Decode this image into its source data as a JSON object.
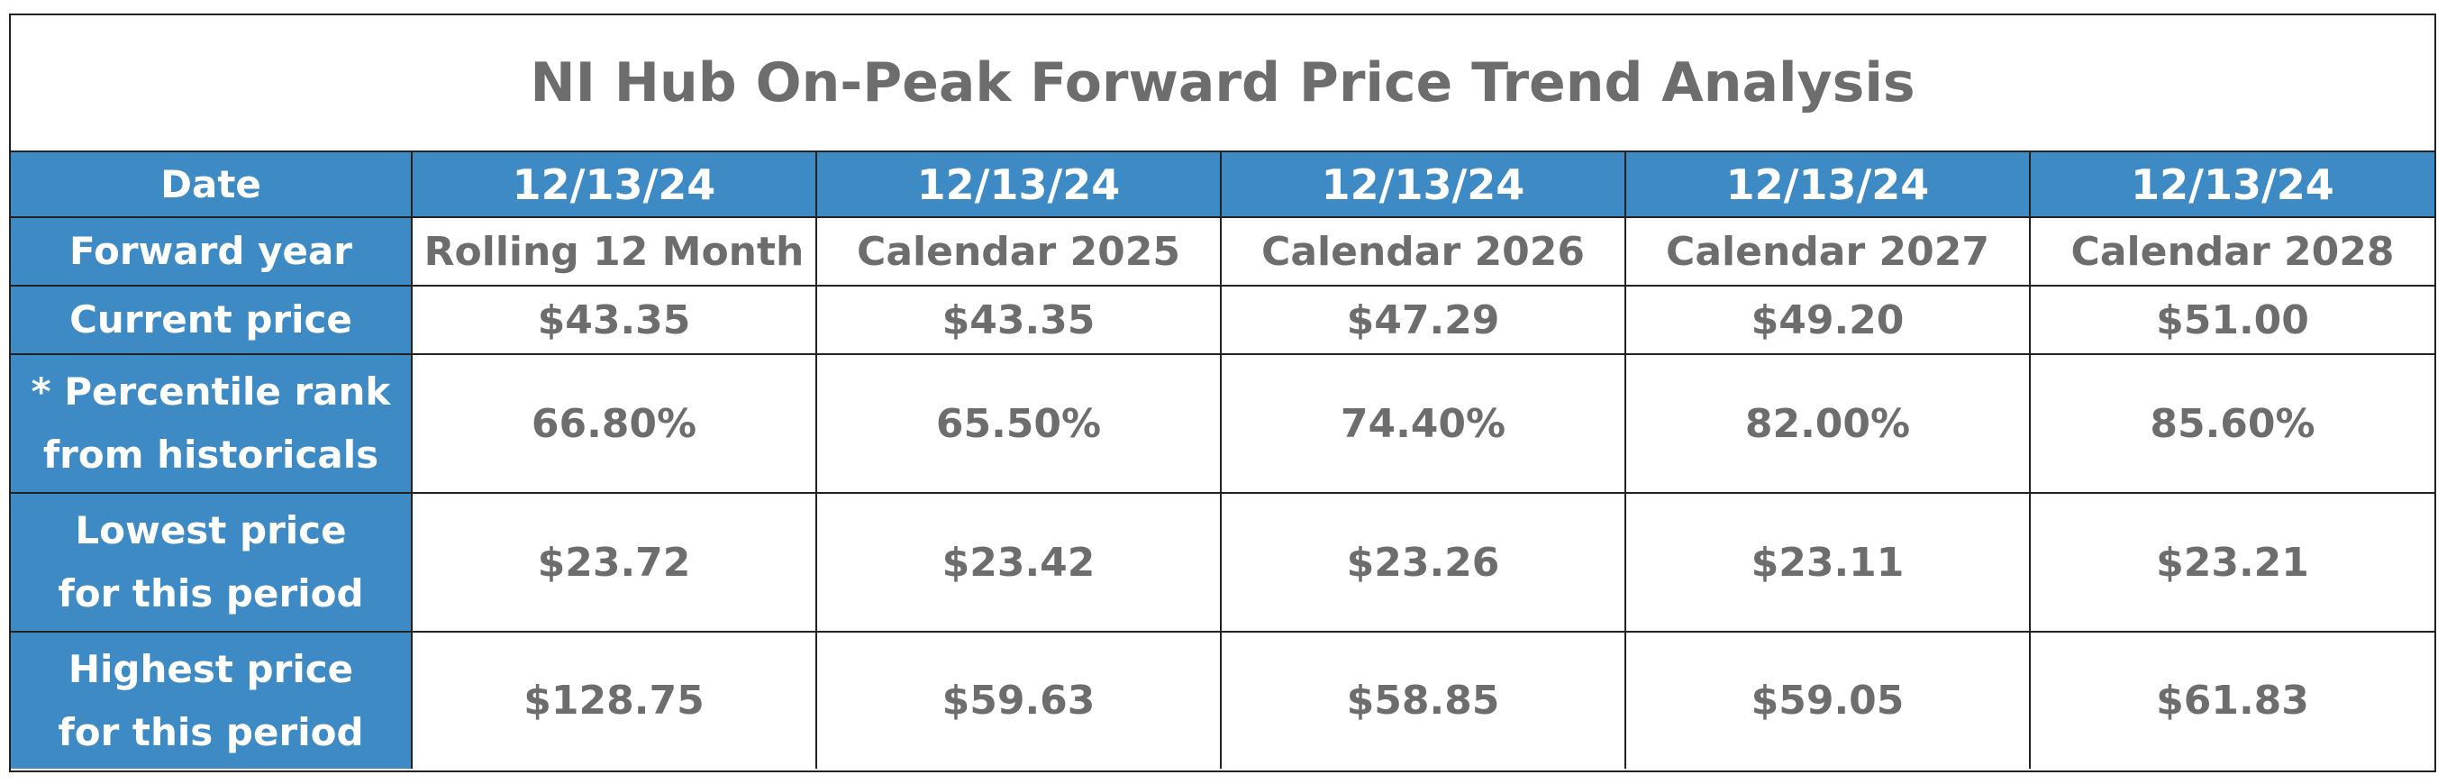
{
  "title": "NI Hub On-Peak Forward Price Trend Analysis",
  "colors": {
    "header_fill": "#3d8ac4",
    "header_text": "#ffffff",
    "cell_text": "#6d6d6d",
    "border": "#222222"
  },
  "row_labels": {
    "date": "Date",
    "forward_year": "Forward year",
    "current_price": "Current price",
    "percentile_line1": "* Percentile rank",
    "percentile_line2": "from historicals",
    "lowest_line1": "Lowest price",
    "lowest_line2": "for this period",
    "highest_line1": "Highest price",
    "highest_line2": "for this period"
  },
  "columns": [
    {
      "date": "12/13/24",
      "forward_year": "Rolling 12 Month",
      "current_price": "$43.35",
      "percentile_rank": "66.80%",
      "lowest_price": "$23.72",
      "highest_price": "$128.75"
    },
    {
      "date": "12/13/24",
      "forward_year": "Calendar 2025",
      "current_price": "$43.35",
      "percentile_rank": "65.50%",
      "lowest_price": "$23.42",
      "highest_price": "$59.63"
    },
    {
      "date": "12/13/24",
      "forward_year": "Calendar 2026",
      "current_price": "$47.29",
      "percentile_rank": "74.40%",
      "lowest_price": "$23.26",
      "highest_price": "$58.85"
    },
    {
      "date": "12/13/24",
      "forward_year": "Calendar 2027",
      "current_price": "$49.20",
      "percentile_rank": "82.00%",
      "lowest_price": "$23.11",
      "highest_price": "$59.05"
    },
    {
      "date": "12/13/24",
      "forward_year": "Calendar 2028",
      "current_price": "$51.00",
      "percentile_rank": "85.60%",
      "lowest_price": "$23.21",
      "highest_price": "$61.83"
    }
  ]
}
